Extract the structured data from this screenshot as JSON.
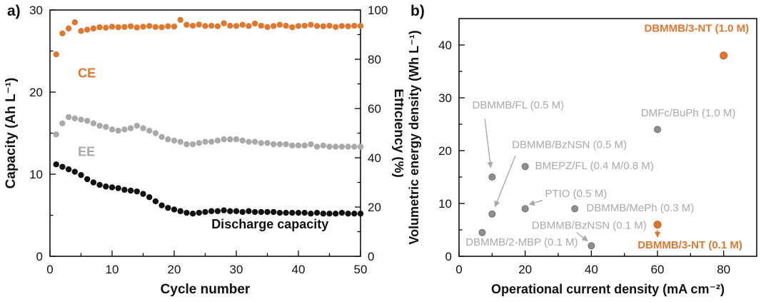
{
  "figure": {
    "panel_a_tag": "a)",
    "panel_b_tag": "b)",
    "colors": {
      "orange": "#E0772E",
      "orange_dark": "#C05F1D",
      "gray": "#A9A9A9",
      "gray_point": "#8F8F8F",
      "gray_dark": "#6E6E6E",
      "black": "#111111"
    }
  },
  "chart_data": [
    {
      "type": "scatter",
      "panel": "a",
      "title": "",
      "xlabel": "Cycle number",
      "ylabel_left": "Capacity (Ah L⁻¹)",
      "ylabel_right": "Efficiency (%)",
      "xlim": [
        0,
        50
      ],
      "ylim_left": [
        0,
        30
      ],
      "ylim_right": [
        0,
        100
      ],
      "xticks": [
        0,
        10,
        20,
        30,
        40,
        50
      ],
      "xticks_minor": [
        5,
        15,
        25,
        35,
        45
      ],
      "yticks_left": [
        0,
        10,
        20,
        30
      ],
      "yticks_left_minor": [
        5,
        15,
        25
      ],
      "yticks_right": [
        0,
        20,
        40,
        60,
        80,
        100
      ],
      "yticks_right_minor": [
        10,
        30,
        50,
        70,
        90
      ],
      "x_start_cycle": 1,
      "series": [
        {
          "name": "CE",
          "axis": "right",
          "color_key": "orange",
          "values": [
            82.0,
            90.5,
            92.5,
            95.0,
            91.5,
            92.0,
            92.5,
            93.0,
            92.8,
            93.2,
            93.0,
            93.1,
            93.4,
            92.9,
            93.2,
            93.5,
            93.1,
            93.0,
            93.4,
            93.3,
            96.0,
            94.0,
            93.6,
            94.1,
            93.5,
            93.6,
            93.4,
            94.6,
            93.6,
            93.5,
            94.0,
            93.5,
            94.5,
            93.6,
            93.1,
            93.5,
            94.0,
            93.6,
            93.0,
            93.5,
            93.6,
            94.0,
            93.5,
            93.4,
            93.6,
            93.1,
            93.5,
            93.4,
            93.6,
            93.5
          ]
        },
        {
          "name": "EE",
          "axis": "right",
          "color_key": "gray",
          "values": [
            49.5,
            54.0,
            56.5,
            56.0,
            55.5,
            55.0,
            54.0,
            53.0,
            52.5,
            51.5,
            51.0,
            51.5,
            52.0,
            53.0,
            52.0,
            51.0,
            50.0,
            48.5,
            47.5,
            47.0,
            46.5,
            45.5,
            45.5,
            46.0,
            46.5,
            46.5,
            47.0,
            47.5,
            47.5,
            47.5,
            47.0,
            46.5,
            46.5,
            46.0,
            46.0,
            45.5,
            45.5,
            45.5,
            45.0,
            45.0,
            45.0,
            45.5,
            44.5,
            45.0,
            44.5,
            44.5,
            44.5,
            44.5,
            44.5,
            44.5
          ]
        },
        {
          "name": "Discharge capacity",
          "axis": "left",
          "color_key": "black",
          "values": [
            11.2,
            10.9,
            10.6,
            10.3,
            9.9,
            9.4,
            9.0,
            8.7,
            8.5,
            8.4,
            8.3,
            8.1,
            8.0,
            7.9,
            7.6,
            7.2,
            6.7,
            6.2,
            5.9,
            5.7,
            5.5,
            5.3,
            5.2,
            5.3,
            5.4,
            5.5,
            5.5,
            5.6,
            5.5,
            5.5,
            5.4,
            5.5,
            5.4,
            5.4,
            5.4,
            5.4,
            5.3,
            5.3,
            5.3,
            5.3,
            5.3,
            5.2,
            5.3,
            5.2,
            5.2,
            5.2,
            5.3,
            5.2,
            5.2,
            5.2
          ]
        }
      ],
      "annotations": [
        {
          "text": "CE",
          "x": 4.5,
          "y": 21.8,
          "color_key": "orange",
          "bold": true,
          "size": 18
        },
        {
          "text": "EE",
          "x": 4.5,
          "y": 12.2,
          "color_key": "gray",
          "bold": true,
          "size": 18
        },
        {
          "text": "Discharge capacity",
          "x": 26,
          "y": 3.4,
          "color_key": "black",
          "bold": true,
          "size": 18
        }
      ]
    },
    {
      "type": "scatter",
      "panel": "b",
      "title": "",
      "xlabel": "Operational current density (mA cm⁻²)",
      "ylabel": "Volumetric energy density (Wh L⁻¹)",
      "xlim": [
        0,
        90
      ],
      "ylim": [
        0,
        45
      ],
      "xticks": [
        0,
        20,
        40,
        60,
        80
      ],
      "xticks_minor": [
        10,
        30,
        50,
        70
      ],
      "yticks": [
        0,
        10,
        20,
        30,
        40
      ],
      "yticks_minor": [
        5,
        15,
        25,
        35
      ],
      "points": [
        {
          "label": "DBMMB/FL (0.5 M)",
          "x": 10,
          "y": 15,
          "color_key": "gray",
          "label_x": 4,
          "label_y": 28,
          "bold": false
        },
        {
          "label": "DBMMB/BzNSN (0.5 M)",
          "x": 10,
          "y": 8,
          "color_key": "gray",
          "label_x": 16,
          "label_y": 20.5,
          "bold": false
        },
        {
          "label": "BMEPZ/FL (0.4 M/0.8 M)",
          "x": 20,
          "y": 17,
          "color_key": "gray",
          "label_x": 23,
          "label_y": 16.5,
          "bold": false
        },
        {
          "label": "PTIO (0.5 M)",
          "x": 20,
          "y": 9,
          "color_key": "gray",
          "label_x": 26,
          "label_y": 11.2,
          "bold": false
        },
        {
          "label": "DBMMB/MePh (0.3 M)",
          "x": 35,
          "y": 9,
          "color_key": "gray",
          "label_x": 38.5,
          "label_y": 8.5,
          "bold": false
        },
        {
          "label": "DBMMB/BzNSN (0.1 M)",
          "x": 40,
          "y": 2,
          "color_key": "gray",
          "label_x": 22,
          "label_y": 5.2,
          "bold": false
        },
        {
          "label": "DBMMB/2-MBP (0.1 M)",
          "x": 7,
          "y": 4.5,
          "color_key": "gray",
          "label_x": 2,
          "label_y": 2.0,
          "bold": false
        },
        {
          "label": "DMFc/BuPh (1.0 M)",
          "x": 60,
          "y": 24,
          "color_key": "gray",
          "label_x": 55,
          "label_y": 26.5,
          "bold": false
        },
        {
          "label": "DBMMB/3-NT (1.0 M)",
          "x": 80,
          "y": 38,
          "color_key": "orange",
          "label_x": 56,
          "label_y": 42.5,
          "bold": true
        },
        {
          "label": "DBMMB/3-NT (0.1 M)",
          "x": 60,
          "y": 6,
          "color_key": "orange",
          "label_x": 54,
          "label_y": 1.5,
          "bold": true
        }
      ],
      "arrows": [
        {
          "from": [
            7.8,
            26.0
          ],
          "to": [
            9.6,
            16.8
          ],
          "color_key": "gray"
        },
        {
          "from": [
            17.0,
            19.0
          ],
          "to": [
            10.9,
            9.4
          ],
          "color_key": "gray"
        },
        {
          "from": [
            25.2,
            10.6
          ],
          "to": [
            21.2,
            9.8
          ],
          "color_key": "gray"
        },
        {
          "from": [
            35.5,
            4.5
          ],
          "to": [
            38.9,
            2.9
          ],
          "color_key": "gray"
        },
        {
          "from": [
            60,
            5.0
          ],
          "to": [
            60,
            3.6
          ],
          "color_key": "orange"
        }
      ]
    }
  ]
}
